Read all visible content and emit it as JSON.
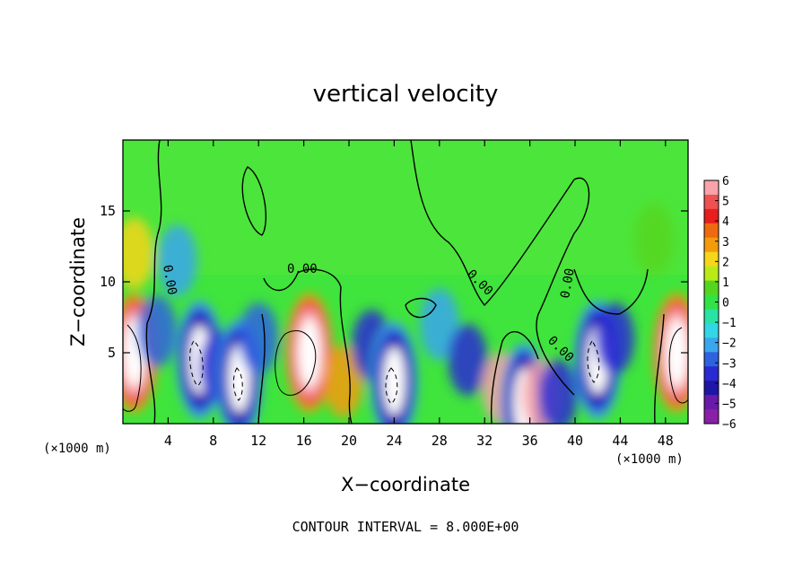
{
  "chart_data": {
    "type": "heatmap",
    "title": "vertical velocity",
    "xlabel": "X−coordinate",
    "ylabel": "Z−coordinate",
    "x_unit_left": "(×1000 m)",
    "x_unit_right": "(×1000 m)",
    "xlim": [
      0,
      50
    ],
    "ylim": [
      0,
      20
    ],
    "x_ticks": [
      4,
      8,
      12,
      16,
      20,
      24,
      28,
      32,
      36,
      40,
      44,
      48
    ],
    "y_ticks": [
      5,
      10,
      15
    ],
    "colorbar": {
      "ticks": [
        "6",
        "5",
        "4",
        "3",
        "2",
        "1",
        "0",
        "−1",
        "−2",
        "−3",
        "−4",
        "−5",
        "−6"
      ],
      "range": [
        -6,
        6
      ],
      "colors": [
        "#f7a3a9",
        "#ef5050",
        "#e81e1e",
        "#ee6a10",
        "#f49b0c",
        "#f6d61a",
        "#b9ea18",
        "#55d61e",
        "#32e246",
        "#28e3a4",
        "#32d6e6",
        "#3aa6ee",
        "#2e63e0",
        "#2a2ad2",
        "#1f16a8",
        "#6a1aa8",
        "#8a1fa6"
      ]
    },
    "contour_labels": [
      "0.00",
      "0.00",
      "0.00",
      "0.00",
      "0.00"
    ],
    "footnote": "CONTOUR INTERVAL = 8.000E+00",
    "features": [
      {
        "x": 1.0,
        "z": 5.0,
        "w": 10
      },
      {
        "x": 3.0,
        "z": 6.5,
        "w": -3
      },
      {
        "x": 4.8,
        "z": 11.5,
        "w": -2
      },
      {
        "x": 6.8,
        "z": 4.5,
        "w": -12
      },
      {
        "x": 8.5,
        "z": 4.0,
        "w": -4
      },
      {
        "x": 10.3,
        "z": 3.2,
        "w": -12
      },
      {
        "x": 12.0,
        "z": 6.0,
        "w": -3
      },
      {
        "x": 16.5,
        "z": 5.0,
        "w": 12
      },
      {
        "x": 19.5,
        "z": 3.0,
        "w": 3
      },
      {
        "x": 22.0,
        "z": 5.5,
        "w": -4
      },
      {
        "x": 24.0,
        "z": 3.0,
        "w": -12
      },
      {
        "x": 28.0,
        "z": 7.0,
        "w": -2
      },
      {
        "x": 30.5,
        "z": 4.5,
        "w": -4
      },
      {
        "x": 33.5,
        "z": 2.5,
        "w": 6
      },
      {
        "x": 35.5,
        "z": 1.5,
        "w": -12
      },
      {
        "x": 37.0,
        "z": 2.0,
        "w": 6
      },
      {
        "x": 38.5,
        "z": 2.0,
        "w": -4
      },
      {
        "x": 42.0,
        "z": 4.5,
        "w": -12
      },
      {
        "x": 43.5,
        "z": 6.0,
        "w": -4
      },
      {
        "x": 47.0,
        "z": 13.0,
        "w": 1
      },
      {
        "x": 49.0,
        "z": 5.0,
        "w": 10
      },
      {
        "x": 1.0,
        "z": 12.0,
        "w": 2
      }
    ]
  }
}
